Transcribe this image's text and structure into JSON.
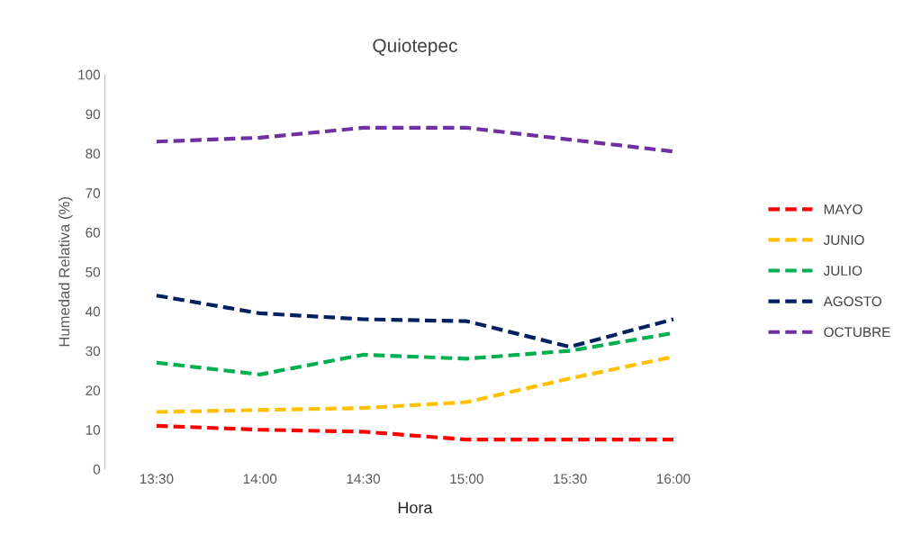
{
  "chart_data": {
    "type": "line",
    "title": "Quiotepec",
    "xlabel": "Hora",
    "ylabel": "Humedad Relativa (%)",
    "categories": [
      "13:30",
      "14:00",
      "14:30",
      "15:00",
      "15:30",
      "16:00"
    ],
    "ylim": [
      0,
      100
    ],
    "yticks": [
      0,
      10,
      20,
      30,
      40,
      50,
      60,
      70,
      80,
      90,
      100
    ],
    "grid": false,
    "legend": "right",
    "line_style": "dashed",
    "marker": "none",
    "series": [
      {
        "name": "MAYO",
        "color": "#ff0000",
        "values": [
          11,
          10,
          9.5,
          7.5,
          7.5,
          7.5
        ]
      },
      {
        "name": "JUNIO",
        "color": "#ffc000",
        "values": [
          14.5,
          15,
          15.5,
          17,
          23,
          28.5
        ]
      },
      {
        "name": "JULIO",
        "color": "#00b050",
        "values": [
          27,
          24,
          29,
          28,
          30,
          34.5
        ]
      },
      {
        "name": "AGOSTO",
        "color": "#002060",
        "values": [
          44,
          39.5,
          38,
          37.5,
          31,
          38
        ]
      },
      {
        "name": "OCTUBRE",
        "color": "#7030a0",
        "values": [
          83,
          84,
          86.5,
          86.5,
          83.5,
          80.5
        ]
      }
    ]
  }
}
